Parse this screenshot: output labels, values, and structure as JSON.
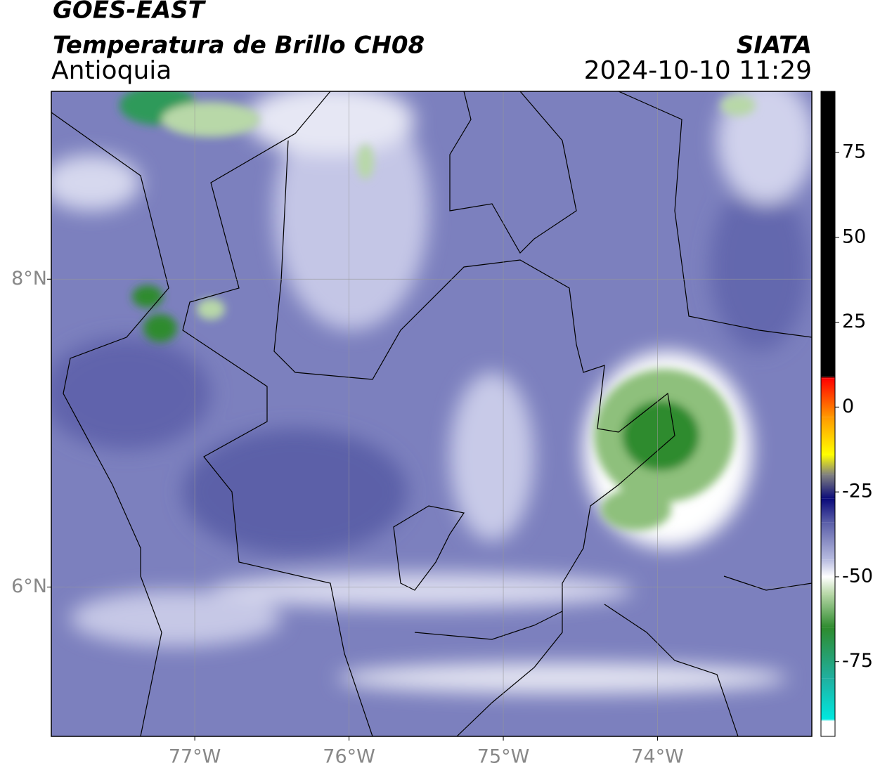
{
  "header": {
    "title": "GOES-EAST",
    "subtitle": "Temperatura de Brillo CH08",
    "region": "Antioquia",
    "source": "SIATA",
    "timestamp": "2024-10-10 11:29"
  },
  "map": {
    "lonlim": [
      -77.93,
      -73.0
    ],
    "latlim": [
      5.03,
      9.22
    ],
    "lon_ticks": [
      {
        "value": -77,
        "label": "77°W"
      },
      {
        "value": -76,
        "label": "76°W"
      },
      {
        "value": -75,
        "label": "75°W"
      },
      {
        "value": -74,
        "label": "74°W"
      }
    ],
    "lat_ticks": [
      {
        "value": 8,
        "label": "8°N"
      },
      {
        "value": 6,
        "label": "6°N"
      }
    ],
    "grid": true
  },
  "colorbar": {
    "vlim": [
      -97,
      93
    ],
    "ticks": [
      75,
      50,
      25,
      0,
      -25,
      -50,
      -75
    ],
    "stops": [
      {
        "value": 93,
        "color": "#000000"
      },
      {
        "value": 9,
        "color": "#000000"
      },
      {
        "value": 8.5,
        "color": "#ff0000"
      },
      {
        "value": -3,
        "color": "#ff9900"
      },
      {
        "value": -14,
        "color": "#ffff00"
      },
      {
        "value": -20,
        "color": "#808080"
      },
      {
        "value": -27,
        "color": "#0a0a7a"
      },
      {
        "value": -34,
        "color": "#5a5ea8"
      },
      {
        "value": -45,
        "color": "#b8bce0"
      },
      {
        "value": -50,
        "color": "#ffffff"
      },
      {
        "value": -55,
        "color": "#b8d8a8"
      },
      {
        "value": -65,
        "color": "#2e8b2e"
      },
      {
        "value": -80,
        "color": "#20b0a0"
      },
      {
        "value": -92,
        "color": "#00e8e0"
      },
      {
        "value": -92.5,
        "color": "#ffffff"
      },
      {
        "value": -97,
        "color": "#ffffff"
      }
    ]
  }
}
